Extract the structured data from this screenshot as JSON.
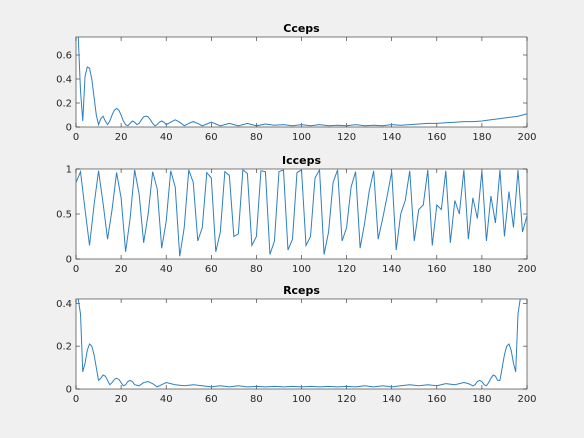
{
  "chart_data": [
    {
      "type": "line",
      "title": "Cceps",
      "xlabel": "",
      "ylabel": "",
      "xlim": [
        0,
        200
      ],
      "ylim": [
        0,
        0.75
      ],
      "xticks": [
        0,
        20,
        40,
        60,
        80,
        100,
        120,
        140,
        160,
        180,
        200
      ],
      "yticks": [
        0,
        0.2,
        0.4,
        0.6
      ],
      "grid": false,
      "color": "#2f7fc0",
      "series": [
        {
          "x": [
            0,
            1,
            2,
            3,
            4,
            5,
            6,
            7,
            8,
            9,
            10,
            11,
            12,
            13,
            14,
            15,
            16,
            17,
            18,
            19,
            20,
            21,
            22,
            23,
            24,
            25,
            26,
            27,
            28,
            29,
            30,
            31,
            32,
            33,
            34,
            35,
            36,
            37,
            38,
            39,
            40,
            42,
            44,
            46,
            48,
            50,
            52,
            54,
            56,
            58,
            60,
            62,
            64,
            66,
            68,
            70,
            72,
            74,
            76,
            78,
            80,
            84,
            88,
            92,
            96,
            100,
            104,
            108,
            112,
            116,
            120,
            124,
            128,
            132,
            136,
            140,
            144,
            148,
            152,
            156,
            160,
            164,
            168,
            172,
            176,
            180,
            184,
            188,
            192,
            196,
            200
          ],
          "y": [
            0.75,
            0.75,
            0.3,
            0.05,
            0.42,
            0.5,
            0.49,
            0.4,
            0.25,
            0.1,
            0.02,
            0.07,
            0.09,
            0.05,
            0.02,
            0.05,
            0.1,
            0.14,
            0.155,
            0.14,
            0.1,
            0.05,
            0.02,
            0.01,
            0.03,
            0.05,
            0.04,
            0.02,
            0.03,
            0.06,
            0.085,
            0.09,
            0.085,
            0.06,
            0.03,
            0.01,
            0.02,
            0.04,
            0.05,
            0.04,
            0.02,
            0.04,
            0.06,
            0.04,
            0.01,
            0.03,
            0.045,
            0.03,
            0.01,
            0.025,
            0.04,
            0.025,
            0.01,
            0.02,
            0.03,
            0.02,
            0.01,
            0.02,
            0.03,
            0.02,
            0.01,
            0.025,
            0.015,
            0.02,
            0.01,
            0.02,
            0.01,
            0.02,
            0.01,
            0.015,
            0.01,
            0.02,
            0.01,
            0.015,
            0.01,
            0.02,
            0.015,
            0.02,
            0.025,
            0.03,
            0.03,
            0.035,
            0.04,
            0.045,
            0.045,
            0.05,
            0.06,
            0.07,
            0.08,
            0.09,
            0.11
          ]
        }
      ]
    },
    {
      "type": "line",
      "title": "Icceps",
      "xlabel": "",
      "ylabel": "",
      "xlim": [
        0,
        200
      ],
      "ylim": [
        0,
        1
      ],
      "xticks": [
        0,
        20,
        40,
        60,
        80,
        100,
        120,
        140,
        160,
        180,
        200
      ],
      "yticks": [
        0,
        0.5,
        1
      ],
      "grid": false,
      "color": "#2f7fc0",
      "period": 6.2,
      "series": [
        {
          "x": [
            0,
            2,
            4,
            6,
            8,
            10,
            12,
            14,
            16,
            18,
            20,
            22,
            24,
            26,
            28,
            30,
            32,
            34,
            36,
            38,
            40,
            42,
            44,
            46,
            48,
            50,
            52,
            54,
            56,
            58,
            60,
            62,
            64,
            66,
            68,
            70,
            72,
            74,
            76,
            78,
            80,
            82,
            84,
            86,
            88,
            90,
            92,
            94,
            96,
            98,
            100,
            102,
            104,
            106,
            108,
            110,
            112,
            114,
            116,
            118,
            120,
            122,
            124,
            126,
            128,
            130,
            132,
            134,
            136,
            138,
            140,
            142,
            144,
            146,
            148,
            150,
            152,
            154,
            156,
            158,
            160,
            162,
            164,
            166,
            168,
            170,
            172,
            174,
            176,
            178,
            180,
            182,
            184,
            186,
            188,
            190,
            192,
            194,
            196,
            198,
            200
          ],
          "y": [
            0.85,
            0.97,
            0.55,
            0.15,
            0.6,
            0.98,
            0.62,
            0.22,
            0.55,
            0.96,
            0.68,
            0.08,
            0.45,
            0.99,
            0.72,
            0.18,
            0.5,
            0.97,
            0.78,
            0.12,
            0.42,
            0.98,
            0.8,
            0.03,
            0.35,
            0.99,
            0.85,
            0.2,
            0.35,
            0.96,
            0.9,
            0.08,
            0.3,
            0.97,
            0.93,
            0.25,
            0.28,
            0.99,
            0.95,
            0.15,
            0.25,
            0.98,
            0.97,
            0.05,
            0.2,
            0.97,
            0.99,
            0.1,
            0.22,
            0.96,
            0.99,
            0.15,
            0.25,
            0.9,
            0.99,
            0.05,
            0.3,
            0.85,
            0.99,
            0.2,
            0.35,
            0.8,
            0.97,
            0.12,
            0.4,
            0.75,
            0.98,
            0.22,
            0.45,
            0.7,
            0.97,
            0.1,
            0.5,
            0.65,
            0.98,
            0.2,
            0.55,
            0.6,
            0.99,
            0.15,
            0.6,
            0.55,
            0.98,
            0.18,
            0.65,
            0.5,
            0.99,
            0.22,
            0.68,
            0.45,
            0.98,
            0.2,
            0.7,
            0.4,
            0.99,
            0.25,
            0.75,
            0.35,
            0.99,
            0.3,
            0.48
          ]
        }
      ]
    },
    {
      "type": "line",
      "title": "Rceps",
      "xlabel": "",
      "ylabel": "",
      "xlim": [
        0,
        200
      ],
      "ylim": [
        0,
        0.42
      ],
      "xticks": [
        0,
        20,
        40,
        60,
        80,
        100,
        120,
        140,
        160,
        180,
        200
      ],
      "yticks": [
        0,
        0.2,
        0.4
      ],
      "grid": false,
      "color": "#2f7fc0",
      "series": [
        {
          "x": [
            0,
            1,
            2,
            3,
            4,
            5,
            6,
            7,
            8,
            9,
            10,
            11,
            12,
            13,
            14,
            15,
            16,
            17,
            18,
            19,
            20,
            21,
            22,
            23,
            24,
            25,
            26,
            28,
            30,
            32,
            34,
            36,
            38,
            40,
            44,
            48,
            52,
            56,
            60,
            64,
            68,
            72,
            76,
            80,
            84,
            88,
            92,
            96,
            100,
            104,
            108,
            112,
            116,
            120,
            124,
            128,
            132,
            136,
            140,
            144,
            148,
            152,
            156,
            160,
            164,
            168,
            172,
            174,
            175,
            176,
            177,
            178,
            179,
            180,
            181,
            182,
            183,
            184,
            185,
            186,
            187,
            188,
            189,
            190,
            191,
            192,
            193,
            194,
            195,
            196,
            197,
            198,
            199,
            200
          ],
          "y": [
            0.42,
            0.42,
            0.35,
            0.08,
            0.12,
            0.18,
            0.21,
            0.2,
            0.16,
            0.1,
            0.04,
            0.05,
            0.065,
            0.06,
            0.04,
            0.02,
            0.03,
            0.045,
            0.05,
            0.045,
            0.03,
            0.015,
            0.02,
            0.035,
            0.04,
            0.035,
            0.02,
            0.015,
            0.03,
            0.035,
            0.025,
            0.01,
            0.02,
            0.03,
            0.02,
            0.015,
            0.02,
            0.015,
            0.01,
            0.015,
            0.01,
            0.015,
            0.01,
            0.012,
            0.01,
            0.012,
            0.01,
            0.012,
            0.01,
            0.012,
            0.01,
            0.012,
            0.01,
            0.012,
            0.01,
            0.015,
            0.01,
            0.015,
            0.01,
            0.015,
            0.02,
            0.015,
            0.02,
            0.015,
            0.025,
            0.02,
            0.03,
            0.025,
            0.02,
            0.015,
            0.02,
            0.035,
            0.04,
            0.035,
            0.02,
            0.015,
            0.03,
            0.05,
            0.065,
            0.06,
            0.04,
            0.04,
            0.1,
            0.16,
            0.2,
            0.21,
            0.18,
            0.12,
            0.08,
            0.35,
            0.42,
            0.42,
            0.42,
            0.42
          ]
        }
      ]
    }
  ]
}
